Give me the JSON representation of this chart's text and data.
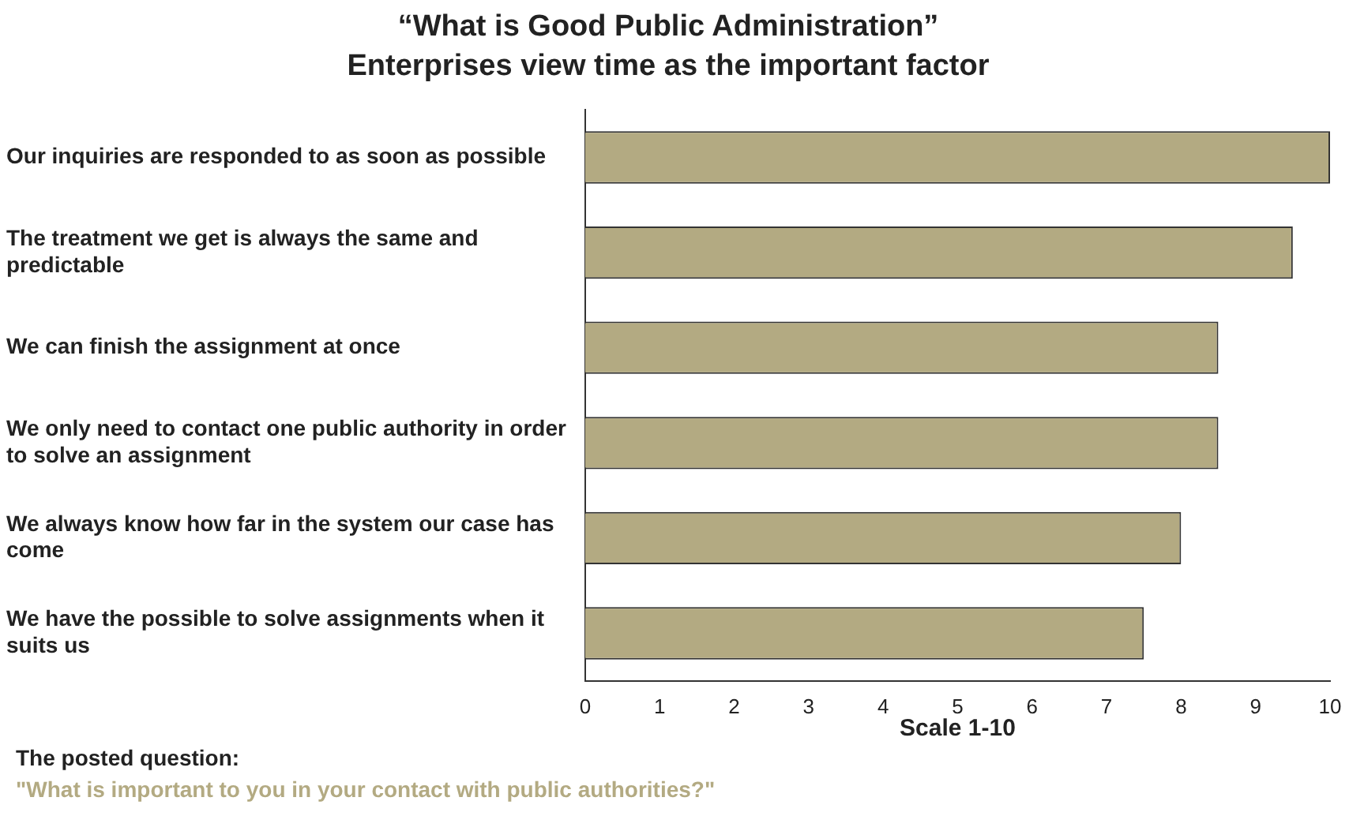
{
  "chart_data": {
    "type": "bar",
    "orientation": "horizontal",
    "title": "“What is Good Public Administration”",
    "subtitle": "Enterprises view time as the important factor",
    "categories": [
      "Our inquiries are responded to as soon as possible",
      "The treatment we get is always the same and predictable",
      "We can finish the assignment at once",
      "We only need to contact one public authority in order to solve an assignment",
      "We always know how far in the system our case has come",
      "We have the possible to solve assignments when it suits us"
    ],
    "values": [
      10,
      9.5,
      8.5,
      8.5,
      8.0,
      7.5
    ],
    "color": "#b3aa82",
    "xlabel": "Scale 1-10",
    "xlim": [
      0,
      10
    ],
    "xticks": [
      0,
      1,
      2,
      3,
      4,
      5,
      6,
      7,
      8,
      9,
      10
    ],
    "grid": false,
    "legend": false,
    "annotations": [
      "The posted question:",
      "\"What is important to you in your contact with public authorities?\""
    ]
  }
}
